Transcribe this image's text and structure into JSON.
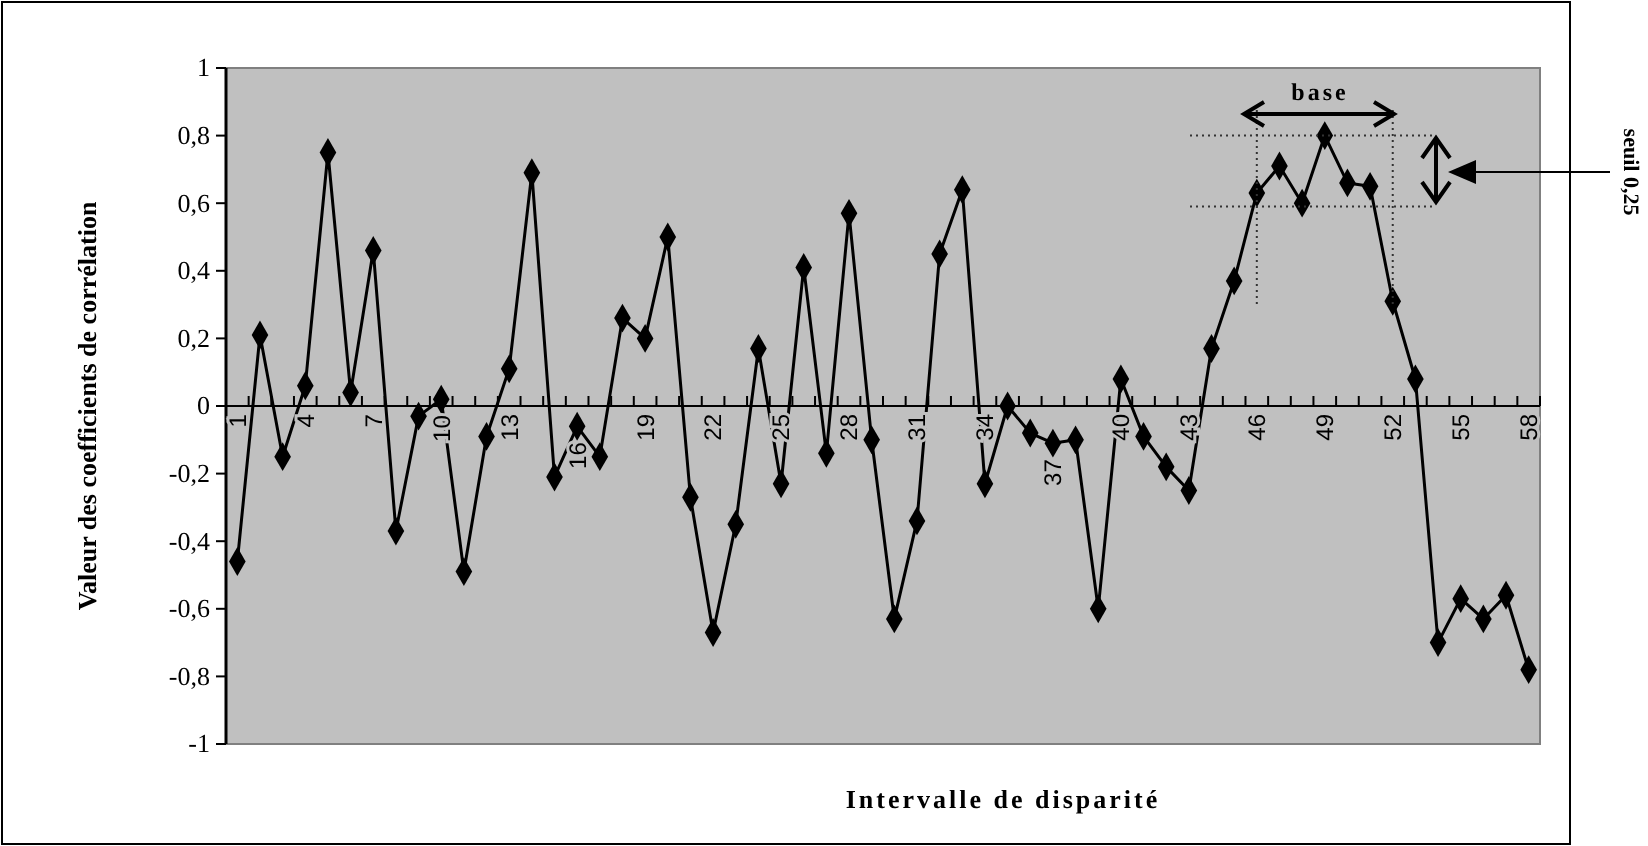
{
  "chart_data": {
    "type": "line",
    "xlabel": "Intervalle de disparité",
    "ylabel": "Valeur des coefficients de corrélation",
    "categories": [
      "1",
      null,
      null,
      "4",
      null,
      null,
      "7",
      null,
      null,
      "10",
      null,
      null,
      "13",
      null,
      null,
      "16",
      null,
      null,
      "19",
      null,
      null,
      "22",
      null,
      null,
      "25",
      null,
      null,
      "28",
      null,
      null,
      "31",
      null,
      null,
      "34",
      null,
      null,
      "37",
      null,
      null,
      "40",
      null,
      null,
      "43",
      null,
      null,
      "46",
      null,
      null,
      "49",
      null,
      null,
      "52",
      null,
      null,
      "55",
      null,
      null,
      "58"
    ],
    "series": [
      {
        "color": "#000000",
        "values": [
          -0.46,
          0.21,
          -0.15,
          0.06,
          0.75,
          0.04,
          0.46,
          -0.37,
          -0.03,
          0.02,
          -0.49,
          -0.09,
          0.11,
          0.69,
          -0.21,
          -0.06,
          -0.15,
          0.26,
          0.2,
          0.5,
          -0.27,
          -0.67,
          -0.35,
          0.17,
          -0.23,
          0.41,
          -0.14,
          0.57,
          -0.1,
          -0.63,
          -0.34,
          0.45,
          0.64,
          -0.23,
          0.0,
          -0.08,
          -0.11,
          -0.1,
          -0.6,
          0.08,
          -0.09,
          -0.18,
          -0.25,
          0.17,
          0.37,
          0.63,
          0.71,
          0.6,
          0.8,
          0.66,
          0.65,
          0.31,
          0.08,
          -0.7,
          -0.57,
          -0.63,
          -0.56,
          -0.78
        ]
      }
    ],
    "ylim": [
      -1,
      1
    ],
    "yticks": [
      -1,
      {
        "value": -0.8,
        "label": "-0,8"
      },
      {
        "value": -0.6,
        "label": "-0,6"
      },
      {
        "value": -0.4,
        "label": "-0,4"
      },
      {
        "value": -0.2,
        "label": "-0,2"
      },
      0,
      {
        "value": 0.2,
        "label": "0,2"
      },
      {
        "value": 0.4,
        "label": "0,4"
      },
      {
        "value": 0.6,
        "label": "0,6"
      },
      {
        "value": 0.8,
        "label": "0,8"
      },
      1
    ],
    "annotations": [
      "base",
      "seuil 0,25"
    ],
    "marker": "diamond",
    "line_style": "solid",
    "ref_lines": [
      {
        "axis": "y",
        "value": 0.8,
        "color": "#333333",
        "line_style": "dotted"
      },
      {
        "axis": "y",
        "value": 0.59,
        "color": "#333333",
        "line_style": "dotted"
      },
      {
        "axis": "x",
        "value": "46",
        "color": "#333333",
        "line_style": "dotted"
      },
      {
        "axis": "x",
        "value": "52",
        "color": "#333333",
        "line_style": "dotted"
      }
    ],
    "grid": false
  }
}
